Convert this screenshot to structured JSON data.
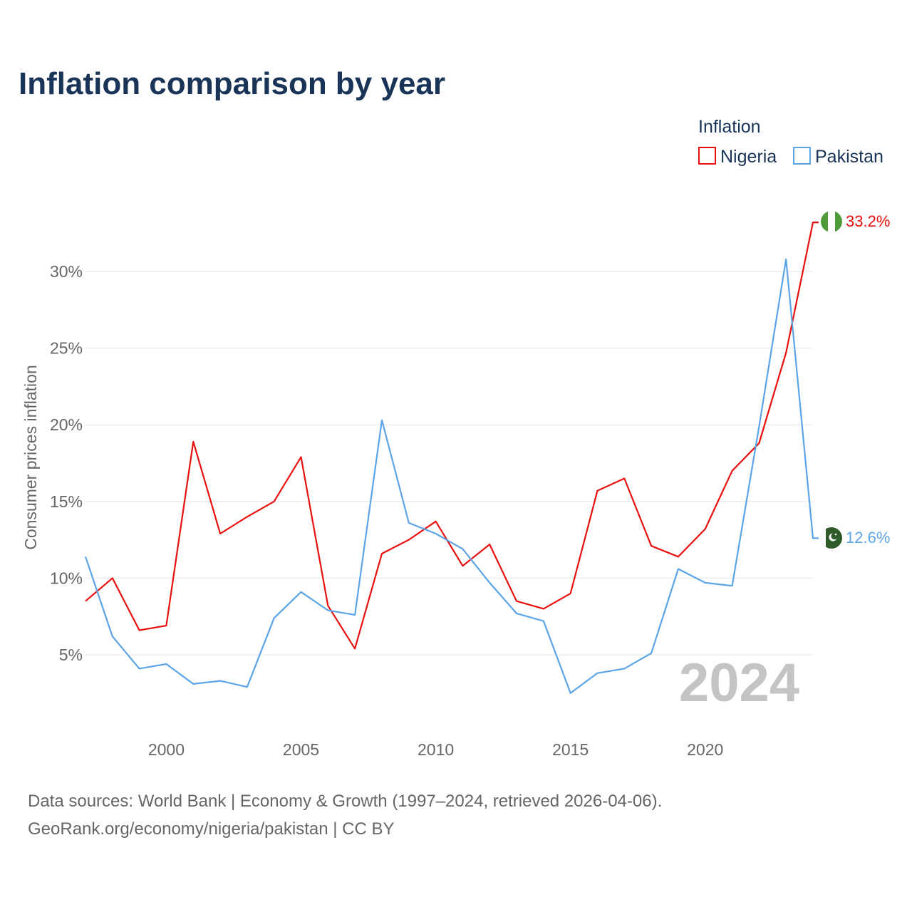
{
  "header": {
    "title": "Inflation comparison by year"
  },
  "legend": {
    "title": "Inflation",
    "items": [
      {
        "name": "Nigeria",
        "color": "#e8100f"
      },
      {
        "name": "Pakistan",
        "color": "#5ba4e6"
      }
    ]
  },
  "footer": {
    "line1": "Data sources: World Bank | Economy & Growth (1997–2024, retrieved 2026-04-06).",
    "line2": "GeoRank.org/economy/nigeria/pakistan | CC BY"
  },
  "watermark": {
    "year": "2024"
  },
  "end_labels": {
    "nigeria": "33.2%",
    "pakistan": "12.6%",
    "nigeria_flag_icon": "nigeria-flag-icon",
    "pakistan_flag_icon": "pakistan-flag-icon"
  },
  "chart_data": {
    "type": "line",
    "title": "Inflation comparison by year",
    "xlabel": "",
    "ylabel": "Consumer prices inflation",
    "xlim": [
      1997,
      2024
    ],
    "ylim": [
      0,
      35
    ],
    "x_ticks": [
      2000,
      2005,
      2010,
      2015,
      2020
    ],
    "x_tick_labels": [
      "2000",
      "2005",
      "2010",
      "2015",
      "2020"
    ],
    "y_ticks": [
      5,
      10,
      15,
      20,
      25,
      30
    ],
    "y_tick_labels": [
      "5%",
      "10%",
      "15%",
      "20%",
      "25%",
      "30%"
    ],
    "grid": true,
    "legend_position": "top-right",
    "x": [
      1997,
      1998,
      1999,
      2000,
      2001,
      2002,
      2003,
      2004,
      2005,
      2006,
      2007,
      2008,
      2009,
      2010,
      2011,
      2012,
      2013,
      2014,
      2015,
      2016,
      2017,
      2018,
      2019,
      2020,
      2021,
      2022,
      2023,
      2024
    ],
    "series": [
      {
        "name": "Nigeria",
        "color": "#e8100f",
        "values": [
          8.5,
          10.0,
          6.6,
          6.9,
          18.9,
          12.9,
          14.0,
          15.0,
          17.9,
          8.2,
          5.4,
          11.6,
          12.5,
          13.7,
          10.8,
          12.2,
          8.5,
          8.0,
          9.0,
          15.7,
          16.5,
          12.1,
          11.4,
          13.2,
          17.0,
          18.8,
          24.7,
          33.2
        ]
      },
      {
        "name": "Pakistan",
        "color": "#5ba4e6",
        "values": [
          11.4,
          6.2,
          4.1,
          4.4,
          3.1,
          3.3,
          2.9,
          7.4,
          9.1,
          7.9,
          7.6,
          20.3,
          13.6,
          12.9,
          11.9,
          9.7,
          7.7,
          7.2,
          2.5,
          3.8,
          4.1,
          5.1,
          10.6,
          9.7,
          9.5,
          19.9,
          30.8,
          12.6
        ]
      }
    ]
  }
}
